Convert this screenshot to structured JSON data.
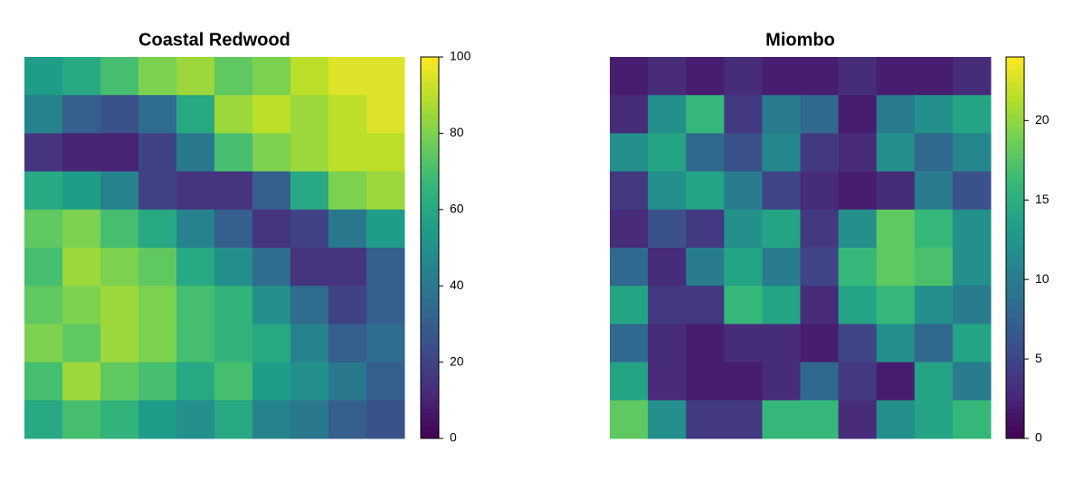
{
  "chart_data": [
    {
      "type": "heatmap",
      "title": "Coastal Redwood",
      "colormap": "viridis",
      "zlim": [
        0,
        100
      ],
      "zticks": [
        0,
        20,
        40,
        60,
        80,
        100
      ],
      "values": [
        [
          55,
          60,
          70,
          80,
          85,
          75,
          80,
          90,
          95,
          95
        ],
        [
          45,
          30,
          25,
          35,
          60,
          85,
          90,
          85,
          90,
          95
        ],
        [
          15,
          10,
          10,
          20,
          40,
          70,
          80,
          85,
          90,
          90
        ],
        [
          60,
          55,
          45,
          20,
          15,
          15,
          30,
          60,
          80,
          85
        ],
        [
          75,
          80,
          70,
          60,
          45,
          30,
          15,
          20,
          40,
          55
        ],
        [
          70,
          85,
          80,
          75,
          60,
          50,
          35,
          15,
          15,
          30
        ],
        [
          75,
          80,
          85,
          80,
          70,
          65,
          50,
          35,
          20,
          30
        ],
        [
          80,
          75,
          85,
          80,
          70,
          65,
          60,
          45,
          30,
          35
        ],
        [
          70,
          85,
          75,
          70,
          60,
          70,
          55,
          50,
          40,
          30
        ],
        [
          60,
          70,
          65,
          55,
          50,
          60,
          45,
          40,
          30,
          25
        ]
      ]
    },
    {
      "type": "heatmap",
      "title": "Miombo",
      "colormap": "viridis",
      "zlim": [
        0,
        24
      ],
      "zticks": [
        0,
        5,
        10,
        15,
        20
      ],
      "values": [
        [
          2,
          3,
          2,
          3,
          2,
          2,
          3,
          2,
          2,
          3
        ],
        [
          3,
          12,
          16,
          4,
          10,
          8,
          2,
          10,
          12,
          14
        ],
        [
          12,
          14,
          8,
          6,
          11,
          4,
          3,
          12,
          8,
          11
        ],
        [
          4,
          12,
          14,
          10,
          5,
          3,
          2,
          3,
          10,
          6
        ],
        [
          3,
          6,
          4,
          12,
          14,
          4,
          12,
          18,
          16,
          12
        ],
        [
          8,
          3,
          10,
          14,
          10,
          5,
          16,
          18,
          17,
          12
        ],
        [
          14,
          4,
          4,
          16,
          14,
          3,
          14,
          16,
          12,
          10
        ],
        [
          8,
          3,
          2,
          3,
          3,
          2,
          5,
          12,
          8,
          14
        ],
        [
          14,
          3,
          2,
          2,
          3,
          8,
          4,
          2,
          14,
          10
        ],
        [
          18,
          12,
          4,
          4,
          16,
          16,
          3,
          12,
          14,
          16
        ]
      ]
    }
  ]
}
